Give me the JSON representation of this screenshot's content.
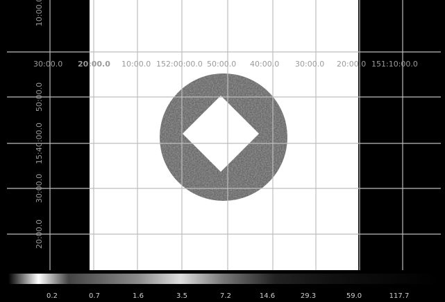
{
  "image_view": {
    "ra_labels": [
      "30:00.0",
      "20:00.0",
      "10:00.0",
      "152:00:00.0",
      "50:00.0",
      "40:00.0",
      "30:00.0",
      "20:00.0",
      "151:10:00.0"
    ],
    "dec_labels": [
      "10:00.0",
      "50:00.0",
      "15:40:00.0",
      "30:00.0",
      "20:00.0"
    ],
    "colorbar_labels": [
      "0.2",
      "0.7",
      "1.6",
      "3.5",
      "7.2",
      "14.6",
      "29.3",
      "59.0",
      "117.7"
    ]
  }
}
